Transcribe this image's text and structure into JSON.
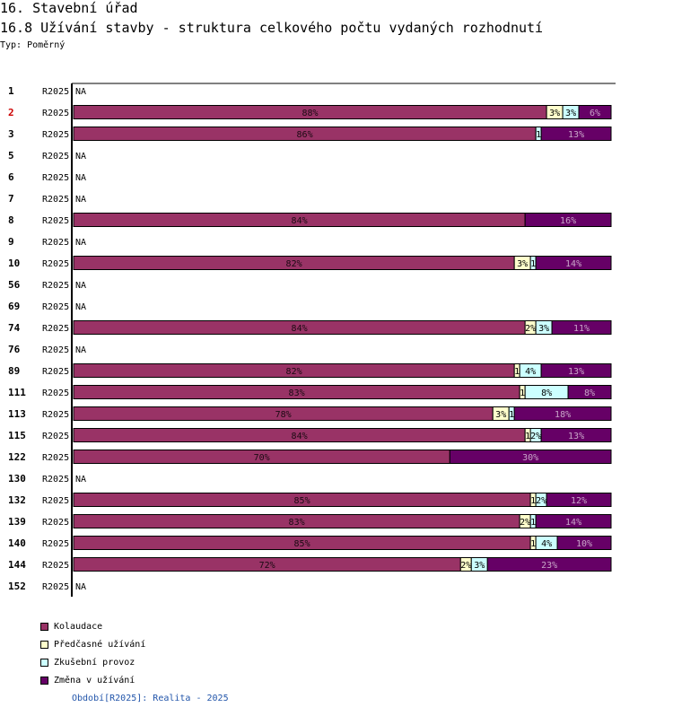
{
  "header": {
    "title": "16. Stavební úřad",
    "subtitle": "16.8 Užívání stavby - struktura celkového počtu vydaných rozhodnutí",
    "type_label": "Typ: Poměrný"
  },
  "chart_data": {
    "type": "bar",
    "orientation": "horizontal",
    "stacked": "percent",
    "period_label": "R2025",
    "na_label": "NA",
    "highlight_row": "2",
    "highlight_color": "#cc0000",
    "series": [
      {
        "name": "Kolaudace",
        "color": "#993366"
      },
      {
        "name": "Předčasné užívání",
        "color": "#ffffcc"
      },
      {
        "name": "Zkušební provoz",
        "color": "#ccffff"
      },
      {
        "name": "Změna v užívání",
        "color": "#660066"
      }
    ],
    "rows": [
      {
        "label": "1",
        "values": null
      },
      {
        "label": "2",
        "values": [
          88,
          3,
          3,
          6
        ]
      },
      {
        "label": "3",
        "values": [
          86,
          0,
          1,
          13
        ]
      },
      {
        "label": "5",
        "values": null
      },
      {
        "label": "6",
        "values": null
      },
      {
        "label": "7",
        "values": null
      },
      {
        "label": "8",
        "values": [
          84,
          0,
          0,
          16
        ]
      },
      {
        "label": "9",
        "values": null
      },
      {
        "label": "10",
        "values": [
          82,
          3,
          1,
          14
        ]
      },
      {
        "label": "56",
        "values": null
      },
      {
        "label": "69",
        "values": null
      },
      {
        "label": "74",
        "values": [
          84,
          2,
          3,
          11
        ]
      },
      {
        "label": "76",
        "values": null
      },
      {
        "label": "89",
        "values": [
          82,
          1,
          4,
          13
        ]
      },
      {
        "label": "111",
        "values": [
          83,
          1,
          8,
          8
        ]
      },
      {
        "label": "113",
        "values": [
          78,
          3,
          1,
          18
        ]
      },
      {
        "label": "115",
        "values": [
          84,
          1,
          2,
          13
        ]
      },
      {
        "label": "122",
        "values": [
          70,
          0,
          0,
          30
        ]
      },
      {
        "label": "130",
        "values": null
      },
      {
        "label": "132",
        "values": [
          85,
          1,
          2,
          12
        ]
      },
      {
        "label": "139",
        "values": [
          83,
          2,
          1,
          14
        ]
      },
      {
        "label": "140",
        "values": [
          85,
          1,
          4,
          10
        ]
      },
      {
        "label": "144",
        "values": [
          72,
          2,
          3,
          23
        ]
      },
      {
        "label": "152",
        "values": null
      }
    ]
  },
  "legend": {
    "items": [
      {
        "label": "Kolaudace",
        "color": "#993366"
      },
      {
        "label": "Předčasné užívání",
        "color": "#ffffcc"
      },
      {
        "label": "Zkušební provoz",
        "color": "#ccffff"
      },
      {
        "label": "Změna v užívání",
        "color": "#660066"
      }
    ]
  },
  "footer": {
    "text": "Období[R2025]: Realita - 2025"
  }
}
